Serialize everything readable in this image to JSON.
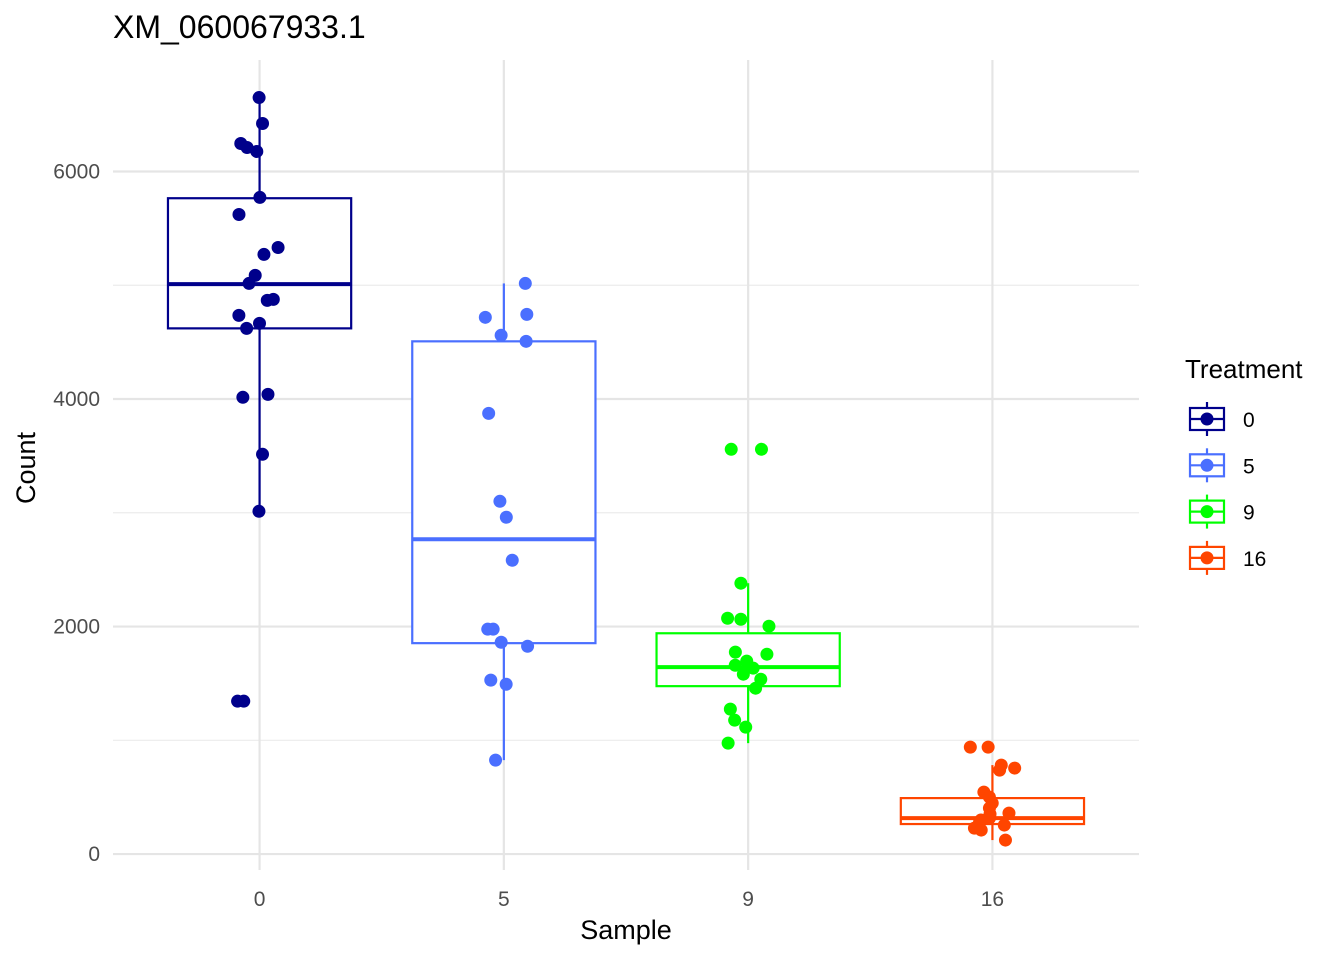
{
  "chart_data": {
    "type": "boxplot",
    "title": "XM_060067933.1",
    "xlabel": "Sample",
    "ylabel": "Count",
    "categories": [
      "0",
      "5",
      "9",
      "16"
    ],
    "ylim": [
      -140,
      6980
    ],
    "yticks": [
      0,
      2000,
      4000,
      6000
    ],
    "grid": true,
    "legend": {
      "title": "Treatment",
      "position": "right",
      "entries": [
        "0",
        "5",
        "9",
        "16"
      ]
    },
    "series": [
      {
        "name": "0",
        "color": "#00008B",
        "box": {
          "q1": 4621,
          "median": 5010,
          "q3": 5765,
          "whisker_low": 3013,
          "whisker_high": 6650
        },
        "points": [
          6650,
          6422,
          6246,
          6211,
          6176,
          5772,
          5622,
          5332,
          5271,
          5087,
          5016,
          4876,
          4867,
          4735,
          4665,
          4621,
          4041,
          4015,
          3514,
          3013,
          1344,
          1344
        ]
      },
      {
        "name": "5",
        "color": "#4A6FFF",
        "box": {
          "q1": 1854,
          "median": 2767,
          "q3": 4507,
          "whisker_low": 826,
          "whisker_high": 5016
        },
        "points": [
          5016,
          4744,
          4718,
          4560,
          4507,
          3874,
          3101,
          2961,
          2583,
          1977,
          1977,
          1827,
          1862,
          1529,
          1493,
          826
        ]
      },
      {
        "name": "9",
        "color": "#00FF00",
        "box": {
          "q1": 1476,
          "median": 1643,
          "q3": 1941,
          "whisker_low": 975,
          "whisker_high": 2381
        },
        "points": [
          3558,
          3558,
          2381,
          2064,
          2073,
          2003,
          1775,
          1757,
          1696,
          1660,
          1634,
          1581,
          1537,
          1458,
          1274,
          1177,
          1116,
          975
        ]
      },
      {
        "name": "16",
        "color": "#FF4500",
        "box": {
          "q1": 264,
          "median": 316,
          "q3": 492,
          "whisker_low": 123,
          "whisker_high": 782
        },
        "points": [
          940,
          940,
          782,
          738,
          756,
          545,
          501,
          448,
          404,
          360,
          351,
          316,
          299,
          281,
          255,
          228,
          211,
          123
        ]
      }
    ]
  }
}
